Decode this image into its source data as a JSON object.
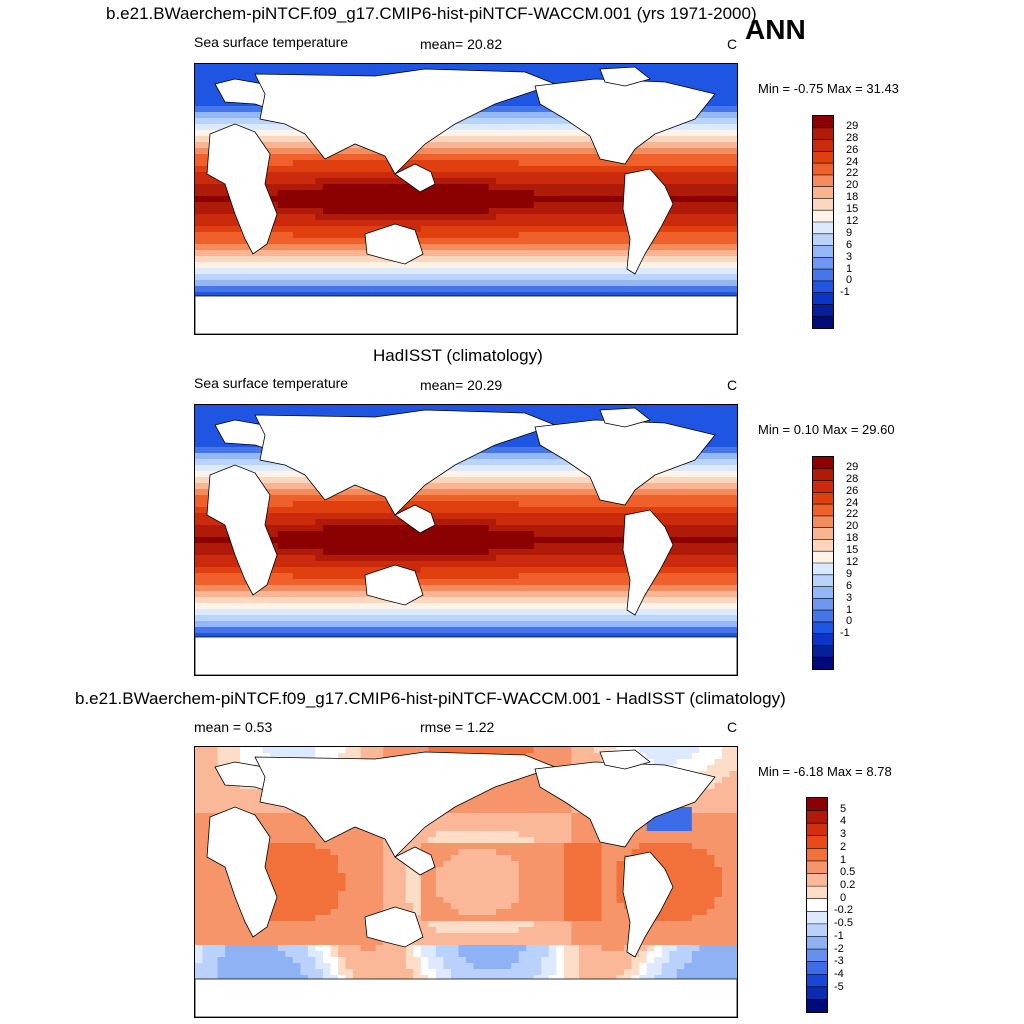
{
  "season_label": "ANN",
  "panels": [
    {
      "title": "b.e21.BWaerchem-piNTCF.f09_g17.CMIP6-hist-piNTCF-WACCM.001 (yrs 1971-2000)",
      "left_label": "Sea surface temperature",
      "center_label": "mean=  20.82",
      "units": "C",
      "minmax": "Min =  -0.75 Max =  31.43",
      "colorbar_labels": [
        "29",
        "28",
        "26",
        "24",
        "22",
        "20",
        "18",
        "15",
        "12",
        "9",
        "6",
        "3",
        "1",
        "0",
        "-1"
      ],
      "colorbar_colors": [
        "#8b0000",
        "#b01a08",
        "#cc2a0c",
        "#e0400f",
        "#f0602a",
        "#f58c5e",
        "#f9b593",
        "#fbd7bf",
        "#fff2e6",
        "#dbeaff",
        "#b9d3fb",
        "#94b7f7",
        "#6d97f0",
        "#4576ea",
        "#1f55e3",
        "#0a35c8",
        "#06209a",
        "#000a78"
      ],
      "field": "sst"
    },
    {
      "title": "HadISST (climatology)",
      "left_label": "Sea surface temperature",
      "center_label": "mean=  20.29",
      "units": "C",
      "minmax": "Min =   0.10 Max =  29.60",
      "colorbar_labels": [
        "29",
        "28",
        "26",
        "24",
        "22",
        "20",
        "18",
        "15",
        "12",
        "9",
        "6",
        "3",
        "1",
        "0",
        "-1"
      ],
      "colorbar_colors": [
        "#8b0000",
        "#b01a08",
        "#cc2a0c",
        "#e0400f",
        "#f0602a",
        "#f58c5e",
        "#f9b593",
        "#fbd7bf",
        "#fff2e6",
        "#dbeaff",
        "#b9d3fb",
        "#94b7f7",
        "#6d97f0",
        "#4576ea",
        "#1f55e3",
        "#0a35c8",
        "#06209a",
        "#000a78"
      ],
      "field": "sst"
    },
    {
      "title": "b.e21.BWaerchem-piNTCF.f09_g17.CMIP6-hist-piNTCF-WACCM.001 - HadISST (climatology)",
      "left_label": "mean =   0.53",
      "center_label": "rmse =   1.22",
      "units": "C",
      "minmax": "Min =  -6.18 Max =   8.78",
      "colorbar_labels": [
        "5",
        "4",
        "3",
        "2",
        "1",
        "0.5",
        "0.2",
        "0",
        "-0.2",
        "-0.5",
        "-1",
        "-2",
        "-3",
        "-4",
        "-5"
      ],
      "colorbar_colors": [
        "#8b0000",
        "#b01a08",
        "#d2300c",
        "#e84a18",
        "#f2703a",
        "#f7956a",
        "#fab898",
        "#fdddc8",
        "#ffffff",
        "#dde9ff",
        "#b9d1fb",
        "#8fb2f5",
        "#6690ee",
        "#3d6ce6",
        "#1846d6",
        "#0a2cb0",
        "#000a78"
      ],
      "field": "diff"
    }
  ]
}
